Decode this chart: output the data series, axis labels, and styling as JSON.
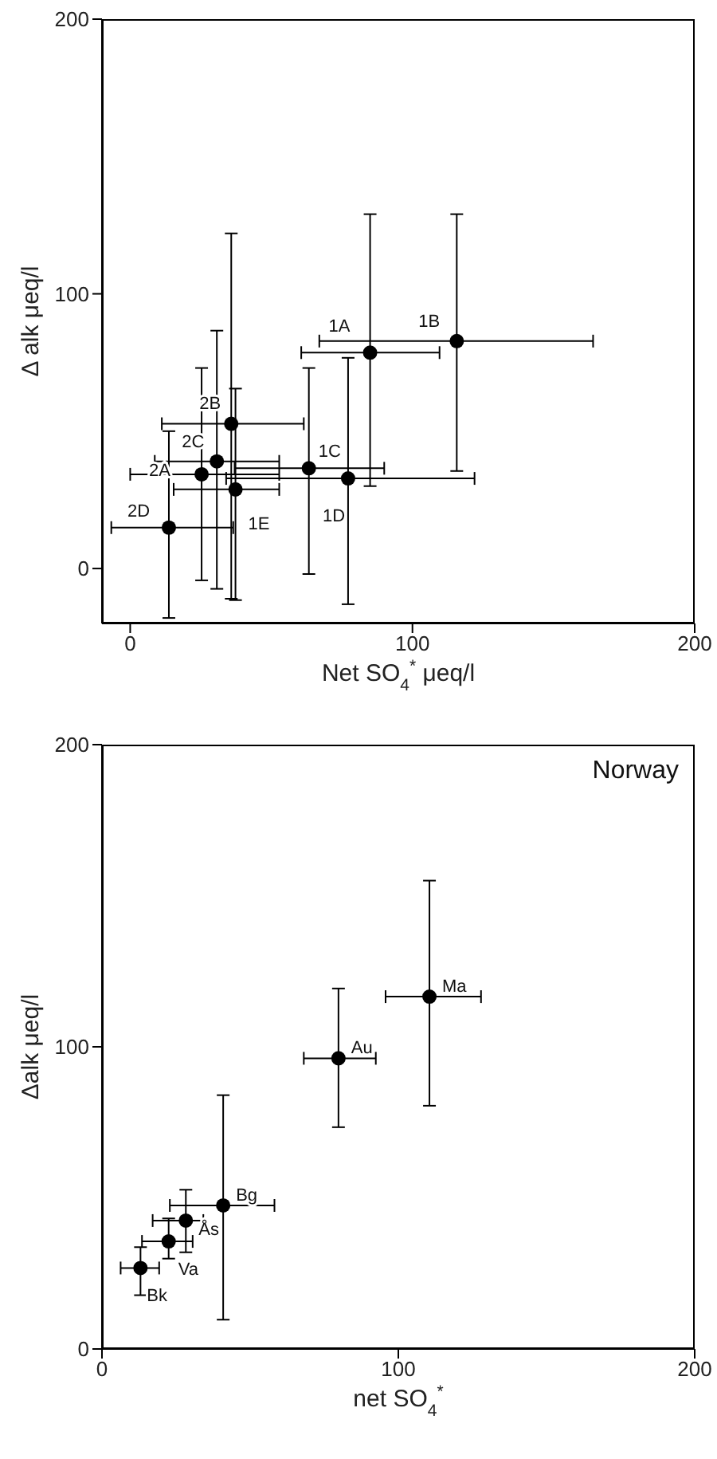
{
  "chart_data": [
    {
      "type": "scatter",
      "xlabel": "Net SO$_{4}$$^{*}$ μeq/l",
      "ylabel": "Δ alk μeq/l",
      "xlim": [
        -10,
        200
      ],
      "ylim": [
        -20,
        200
      ],
      "xticks": [
        0,
        100,
        200
      ],
      "yticks": [
        0,
        100,
        200
      ],
      "grid": false,
      "marker": "circle",
      "series": [
        {
          "color": "#000000",
          "x": [
            85,
            115.7,
            63.3,
            77.2,
            37.3,
            25.3,
            35.8,
            30.7,
            13.7
          ],
          "values": [
            78.6,
            82.8,
            36.5,
            32.8,
            28.8,
            34.3,
            52.7,
            39,
            14.9
          ],
          "errors": [
            [
              30,
              129
            ],
            [
              35.5,
              129
            ],
            [
              -2,
              73
            ],
            [
              -13,
              76.7
            ],
            [
              -11.5,
              65.5
            ],
            [
              -4.3,
              73
            ],
            [
              -11,
              122
            ],
            [
              -7.4,
              86.6
            ],
            [
              -18,
              50
            ]
          ],
          "xerrors": [
            [
              60.6,
              109.6
            ],
            [
              67,
              164
            ],
            [
              37,
              90
            ],
            [
              34,
              122
            ],
            [
              15.4,
              52.8
            ],
            [
              0,
              52.8
            ],
            [
              11.2,
              61.5
            ],
            [
              8.7,
              52.8
            ],
            [
              -6.7,
              36.5
            ]
          ]
        }
      ],
      "annotations": [
        {
          "text": "1A",
          "x": 85,
          "y": 78.6
        },
        {
          "text": "1B",
          "x": 115.7,
          "y": 82.8
        },
        {
          "text": "1C",
          "x": 63.3,
          "y": 36.5
        },
        {
          "text": "1D",
          "x": 77.2,
          "y": 32.8
        },
        {
          "text": "1E",
          "x": 37.3,
          "y": 28.8
        },
        {
          "text": "2A",
          "x": 25.3,
          "y": 34.3
        },
        {
          "text": "2B",
          "x": 35.8,
          "y": 52.7
        },
        {
          "text": "2C",
          "x": 30.7,
          "y": 39
        },
        {
          "text": "2D",
          "x": 13.7,
          "y": 14.9
        }
      ]
    },
    {
      "type": "scatter",
      "xlabel": "net SO$_{4}$$^{*}$",
      "ylabel": "Δalk μeq/l",
      "xlim": [
        0,
        200
      ],
      "ylim": [
        0,
        200
      ],
      "xticks": [
        0,
        100,
        200
      ],
      "yticks": [
        0,
        100,
        200
      ],
      "grid": false,
      "marker": "circle",
      "series": [
        {
          "color": "#000000",
          "x": [
            13,
            22.5,
            28.3,
            40.9,
            79.8,
            110.5
          ],
          "values": [
            26.8,
            35.6,
            42.5,
            47.5,
            96.2,
            116.6
          ],
          "errors": [
            [
              17.8,
              33.7
            ],
            [
              29.9,
              43.2
            ],
            [
              32,
              52.7
            ],
            [
              9.7,
              84
            ],
            [
              73.4,
              119.3
            ],
            [
              80.5,
              155
            ]
          ],
          "xerrors": [
            [
              6.3,
              19.3
            ],
            [
              13.5,
              30.6
            ],
            [
              17.1,
              34.2
            ],
            [
              22.9,
              58.2
            ],
            [
              68.1,
              92.4
            ],
            [
              95.7,
              127.9
            ]
          ]
        }
      ],
      "annotations": [
        "Norway",
        {
          "text": "Bk",
          "x": 13,
          "y": 26.8
        },
        {
          "text": "Va",
          "x": 22.5,
          "y": 35.6
        },
        {
          "text": "Ås",
          "x": 28.3,
          "y": 42.5
        },
        {
          "text": "Bg",
          "x": 40.9,
          "y": 47.5
        },
        {
          "text": "Au",
          "x": 79.8,
          "y": 96.2
        },
        {
          "text": "Ma",
          "x": 110.5,
          "y": 116.6
        }
      ]
    }
  ]
}
